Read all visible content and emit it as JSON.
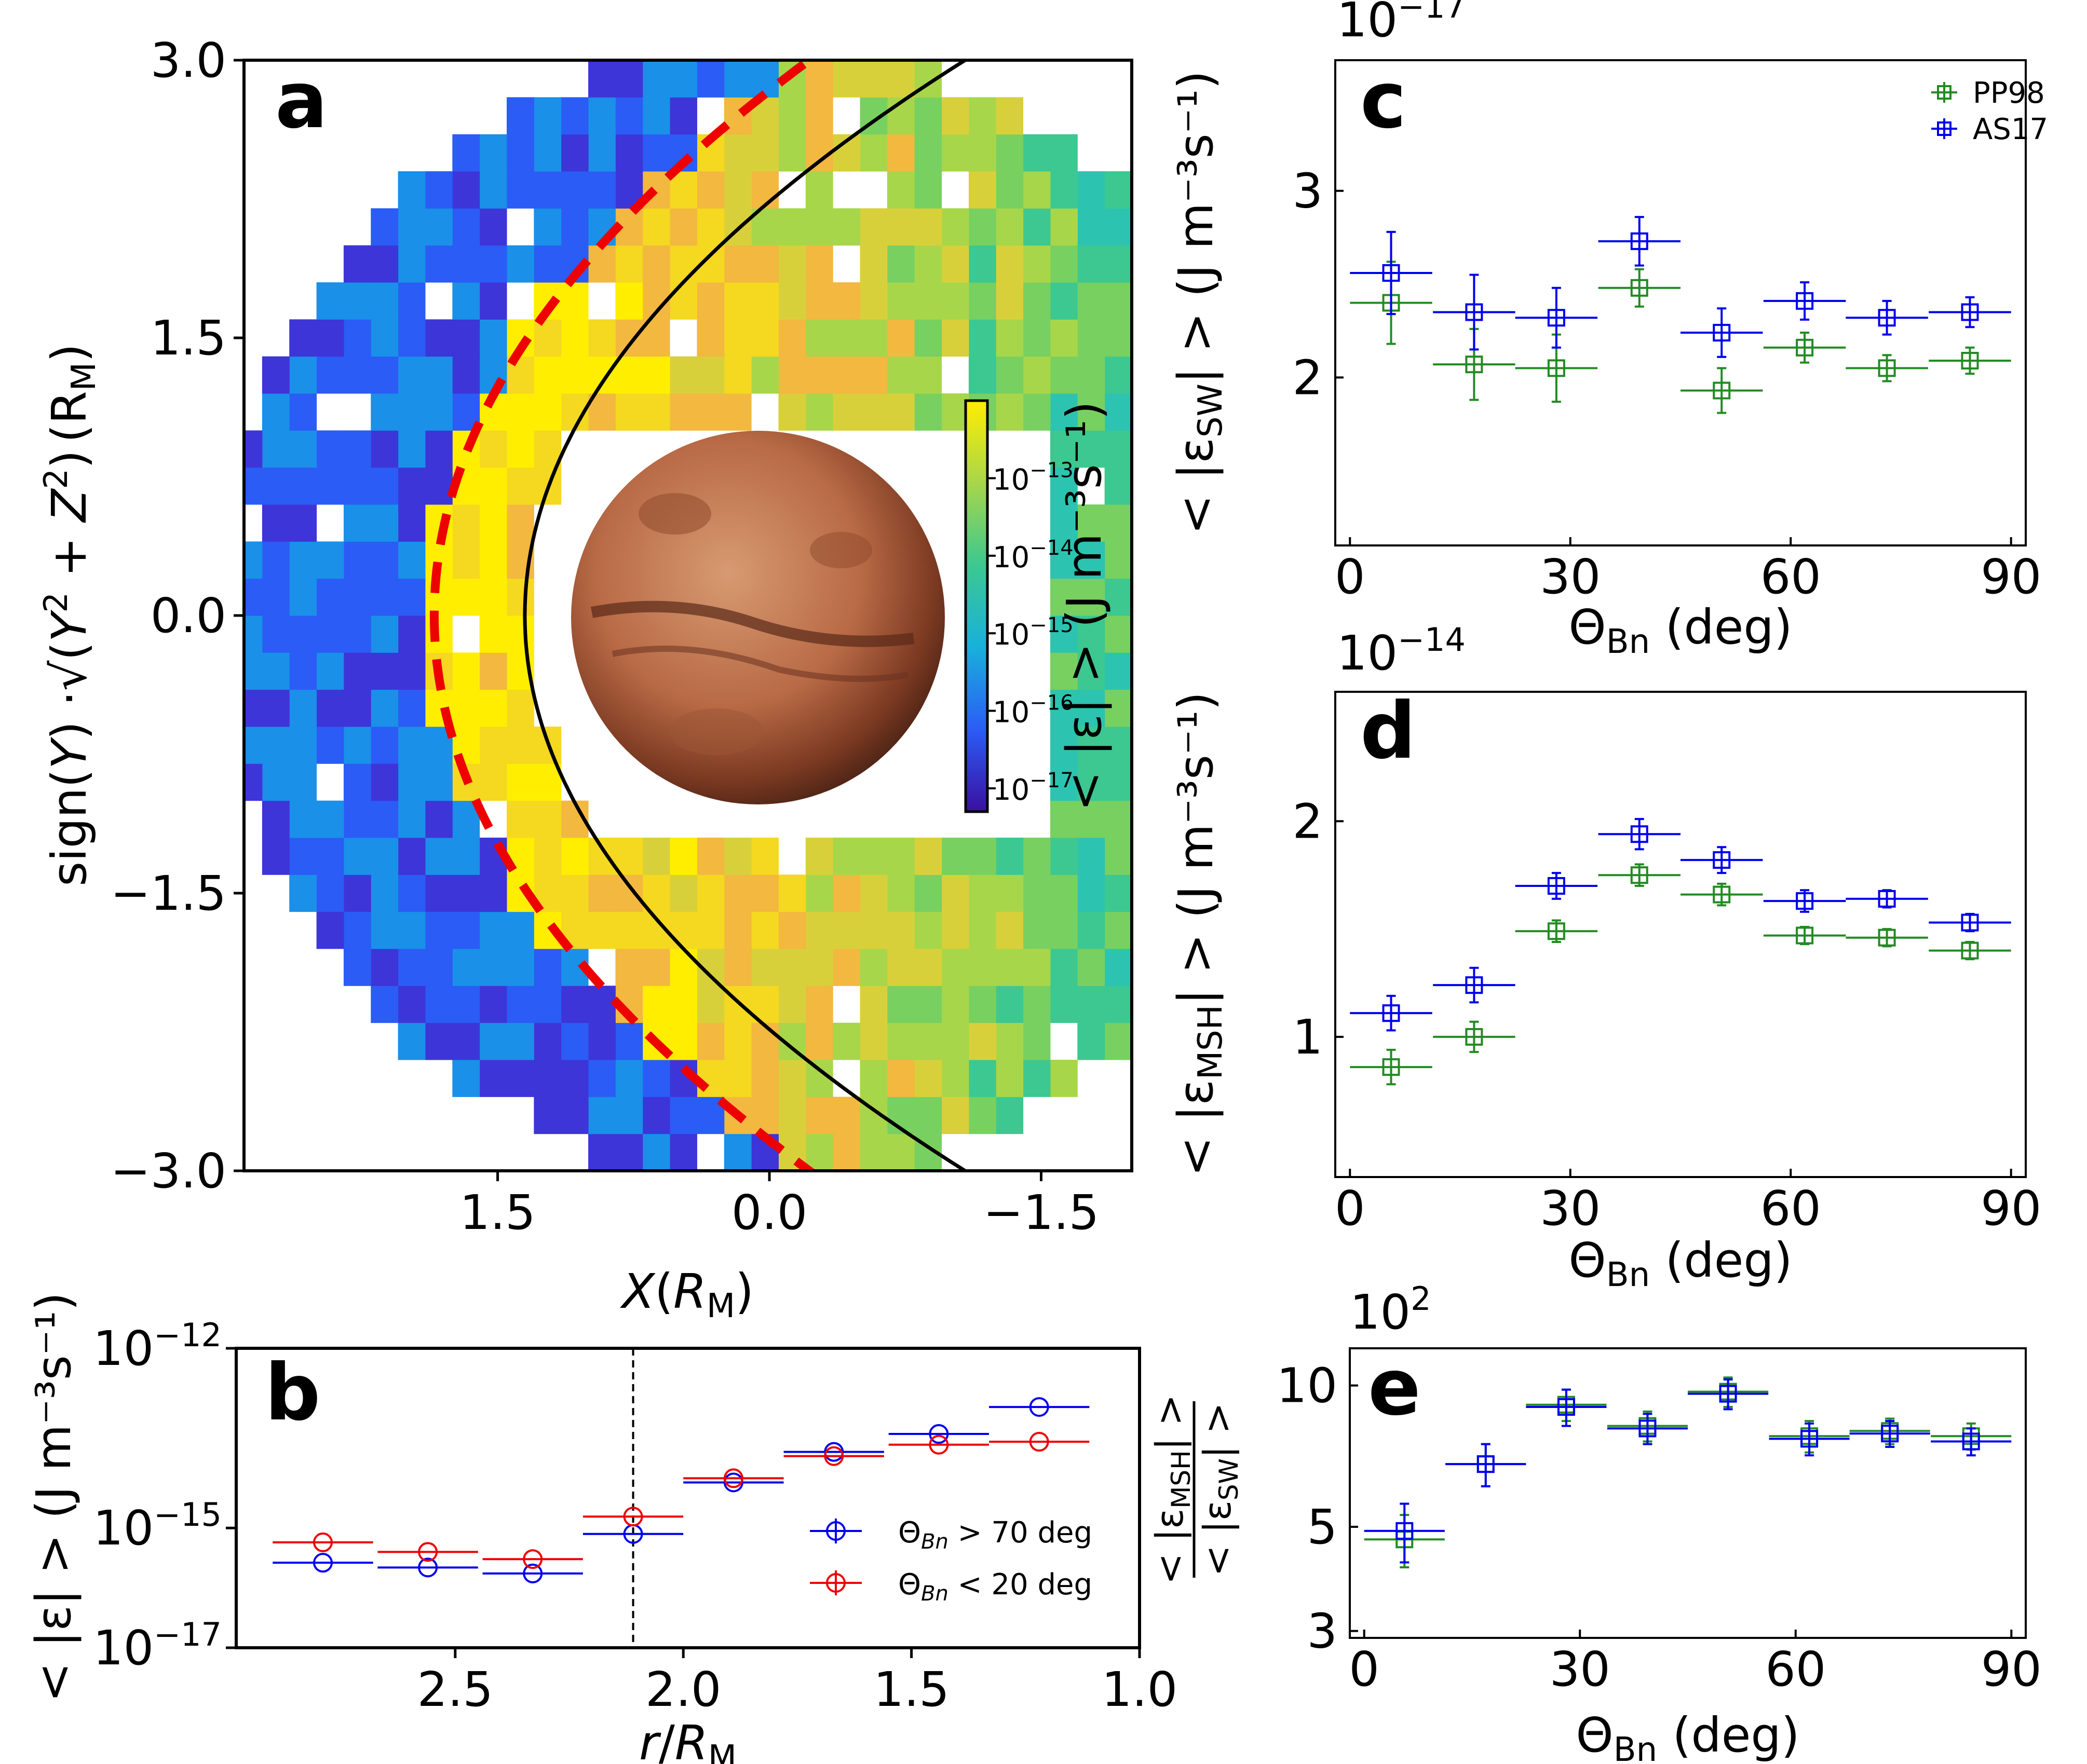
{
  "colors": {
    "blue": "#0000ee",
    "green": "#228b22",
    "red": "#ee0000",
    "black": "#000000"
  },
  "chart_data": [
    {
      "panel": "a",
      "type": "heatmap",
      "letter": "a",
      "xlabel_sym": "X",
      "xlabel_unit": "R",
      "xlabel_unit_sub": "M",
      "ylabel_prefix": "sign(",
      "ylabel_y": "Y",
      "ylabel_mid": ") ·√(",
      "ylabel_y2": "Y",
      "ylabel_plus": " + ",
      "ylabel_z2": "Z",
      "ylabel_close": ")",
      "ylabel_unit": "(R",
      "ylabel_unit_sub": "M",
      "ylabel_unit_close": ")",
      "xlim": [
        2.9,
        -2.0
      ],
      "ylim": [
        -3.0,
        3.0
      ],
      "x_ticks": [
        "1.5",
        "0.0",
        "−1.5"
      ],
      "x_tick_values": [
        1.5,
        0.0,
        -1.5
      ],
      "y_ticks": [
        "3.0",
        "1.5",
        "0.0",
        "−1.5",
        "−3.0"
      ],
      "y_tick_values": [
        3.0,
        1.5,
        0.0,
        -1.5,
        -3.0
      ],
      "colorbar": {
        "label": "< |ε| > (J m⁻³s⁻¹)",
        "scale": "log",
        "range": [
          5e-18,
          1e-12
        ],
        "ticks": [
          "10",
          "10",
          "10",
          "10",
          "10"
        ],
        "tick_exps": [
          "−13",
          "−14",
          "−15",
          "−16",
          "−17"
        ],
        "tick_values": [
          1e-13,
          1e-14,
          1e-15,
          1e-16,
          1e-17
        ]
      },
      "bow_shock": {
        "style": "dashed red",
        "subsolar_x": 1.85
      },
      "boundary": {
        "style": "solid black",
        "subsolar_x": 1.35
      }
    },
    {
      "panel": "b",
      "type": "scatter",
      "letter": "b",
      "xlabel_sym": "r",
      "xlabel_slash": "/",
      "xlabel_unit": "R",
      "xlabel_unit_sub": "M",
      "ylabel": "< |ε| > (J m⁻³s⁻¹)",
      "xlim": [
        2.98,
        1.0
      ],
      "ylim_exp": [
        -17,
        -12
      ],
      "y_scale": "log",
      "x_ticks": [
        "2.5",
        "2.0",
        "1.5",
        "1.0"
      ],
      "x_tick_values": [
        2.5,
        2.0,
        1.5,
        1.0
      ],
      "y_ticks_base": "10",
      "y_ticks_exp": [
        "−12",
        "−15",
        "−17"
      ],
      "y_tick_exp_values": [
        -12,
        -15,
        -17
      ],
      "vline_x": 2.11,
      "legend_position": "lower right",
      "series": [
        {
          "name": "Θ",
          "name_sub": "Bn",
          "name_rest": " > 70 deg",
          "color": "#0000ee",
          "marker": "circle",
          "x": [
            2.79,
            2.56,
            2.33,
            2.11,
            1.89,
            1.67,
            1.44,
            1.22
          ],
          "xerr": [
            0.11,
            0.11,
            0.11,
            0.11,
            0.11,
            0.11,
            0.11,
            0.11
          ],
          "y_exp": [
            -15.58,
            -15.66,
            -15.76,
            -15.1,
            -14.24,
            -13.73,
            -13.43,
            -12.98
          ]
        },
        {
          "name": "Θ",
          "name_sub": "Bn",
          "name_rest": " < 20 deg",
          "color": "#ee0000",
          "marker": "circle",
          "x": [
            2.79,
            2.56,
            2.33,
            2.11,
            1.89,
            1.67,
            1.44,
            1.22
          ],
          "xerr": [
            0.11,
            0.11,
            0.11,
            0.11,
            0.11,
            0.11,
            0.11,
            0.11
          ],
          "y_exp": [
            -15.24,
            -15.4,
            -15.52,
            -14.81,
            -14.17,
            -13.8,
            -13.61,
            -13.56
          ]
        }
      ]
    },
    {
      "panel": "c",
      "type": "scatter",
      "letter": "c",
      "xlabel": "Θ",
      "xlabel_sub": "Bn",
      "xlabel_rest": " (deg)",
      "ylabel": "< |ε",
      "ylabel_sub": "SW",
      "ylabel_rest": "| > (J m⁻³s⁻¹)",
      "offset_base": "10",
      "offset_exp": "−17",
      "xlim": [
        -2,
        92
      ],
      "ylim": [
        1.1,
        3.7
      ],
      "x_ticks": [
        "0",
        "30",
        "60",
        "90"
      ],
      "x_tick_values": [
        0,
        30,
        60,
        90
      ],
      "y_ticks": [
        "3",
        "2"
      ],
      "y_tick_values": [
        3,
        2
      ],
      "legend_position": "top right",
      "series": [
        {
          "name": "PP98",
          "color": "#228b22",
          "marker": "square",
          "x": [
            5.6,
            16.9,
            28.1,
            39.4,
            50.6,
            61.9,
            73.1,
            84.4
          ],
          "xerr": [
            5.6,
            5.6,
            5.6,
            5.6,
            5.6,
            5.6,
            5.6,
            5.6
          ],
          "y": [
            2.4,
            2.07,
            2.05,
            2.48,
            1.93,
            2.16,
            2.05,
            2.09
          ],
          "yerr": [
            0.22,
            0.19,
            0.18,
            0.1,
            0.12,
            0.08,
            0.07,
            0.07
          ]
        },
        {
          "name": "AS17",
          "color": "#0000ee",
          "marker": "square",
          "x": [
            5.6,
            16.9,
            28.1,
            39.4,
            50.6,
            61.9,
            73.1,
            84.4
          ],
          "xerr": [
            5.6,
            5.6,
            5.6,
            5.6,
            5.6,
            5.6,
            5.6,
            5.6
          ],
          "y": [
            2.56,
            2.35,
            2.32,
            2.73,
            2.24,
            2.41,
            2.32,
            2.35
          ],
          "yerr": [
            0.22,
            0.2,
            0.16,
            0.13,
            0.13,
            0.1,
            0.09,
            0.08
          ]
        }
      ]
    },
    {
      "panel": "d",
      "type": "scatter",
      "letter": "d",
      "xlabel": "Θ",
      "xlabel_sub": "Bn",
      "xlabel_rest": " (deg)",
      "ylabel": "< |ε",
      "ylabel_sub": "MSH",
      "ylabel_rest": "| > (J m⁻³s⁻¹)",
      "offset_base": "10",
      "offset_exp": "−14",
      "xlim": [
        -2,
        92
      ],
      "ylim": [
        0.35,
        2.6
      ],
      "x_ticks": [
        "0",
        "30",
        "60",
        "90"
      ],
      "x_tick_values": [
        0,
        30,
        60,
        90
      ],
      "y_ticks": [
        "2",
        "1"
      ],
      "y_tick_values": [
        2,
        1
      ],
      "series": [
        {
          "name": "PP98",
          "color": "#228b22",
          "marker": "square",
          "x": [
            5.6,
            16.9,
            28.1,
            39.4,
            50.6,
            61.9,
            73.1,
            84.4
          ],
          "xerr": [
            5.6,
            5.6,
            5.6,
            5.6,
            5.6,
            5.6,
            5.6,
            5.6
          ],
          "y": [
            0.86,
            1.0,
            1.49,
            1.75,
            1.66,
            1.47,
            1.46,
            1.4
          ],
          "yerr": [
            0.08,
            0.07,
            0.05,
            0.05,
            0.05,
            0.04,
            0.04,
            0.04
          ]
        },
        {
          "name": "AS17",
          "color": "#0000ee",
          "marker": "square",
          "x": [
            5.6,
            16.9,
            28.1,
            39.4,
            50.6,
            61.9,
            73.1,
            84.4
          ],
          "xerr": [
            5.6,
            5.6,
            5.6,
            5.6,
            5.6,
            5.6,
            5.6,
            5.6
          ],
          "y": [
            1.11,
            1.24,
            1.7,
            1.94,
            1.82,
            1.63,
            1.64,
            1.53
          ],
          "yerr": [
            0.08,
            0.08,
            0.06,
            0.07,
            0.06,
            0.05,
            0.04,
            0.04
          ]
        }
      ]
    },
    {
      "panel": "e",
      "type": "scatter",
      "letter": "e",
      "xlabel": "Θ",
      "xlabel_sub": "Bn",
      "xlabel_rest": " (deg)",
      "ylabel_num": "< |ε",
      "ylabel_num_sub": "MSH",
      "ylabel_num_rest": "| >",
      "ylabel_den": "< |ε",
      "ylabel_den_sub": "SW",
      "ylabel_den_rest": "| >",
      "offset_base": "10",
      "offset_exp": "2",
      "y_scale": "log",
      "xlim": [
        -2,
        92
      ],
      "ylim": [
        2.9,
        12.0
      ],
      "x_ticks": [
        "0",
        "30",
        "60",
        "90"
      ],
      "x_tick_values": [
        0,
        30,
        60,
        90
      ],
      "y_ticks": [
        "10",
        "5",
        "3"
      ],
      "y_tick_values": [
        10,
        5,
        3
      ],
      "series": [
        {
          "name": "PP98",
          "color": "#228b22",
          "marker": "square",
          "x": [
            5.6,
            16.9,
            28.1,
            39.4,
            50.6,
            61.9,
            73.1,
            84.4
          ],
          "xerr": [
            5.6,
            5.6,
            5.6,
            5.6,
            5.6,
            5.6,
            5.6,
            5.6
          ],
          "y": [
            4.7,
            6.8,
            9.1,
            8.2,
            9.7,
            7.8,
            8.0,
            7.8
          ],
          "yerr": [
            0.6,
            0.7,
            0.7,
            0.6,
            0.7,
            0.6,
            0.5,
            0.5
          ]
        },
        {
          "name": "AS17",
          "color": "#0000ee",
          "marker": "square",
          "x": [
            5.6,
            16.9,
            28.1,
            39.4,
            50.6,
            61.9,
            73.1,
            84.4
          ],
          "xerr": [
            5.6,
            5.6,
            5.6,
            5.6,
            5.6,
            5.6,
            5.6,
            5.6
          ],
          "y": [
            4.9,
            6.8,
            9.0,
            8.1,
            9.6,
            7.7,
            7.9,
            7.6
          ],
          "yerr": [
            0.7,
            0.7,
            0.8,
            0.6,
            0.7,
            0.6,
            0.5,
            0.5
          ]
        }
      ]
    }
  ]
}
